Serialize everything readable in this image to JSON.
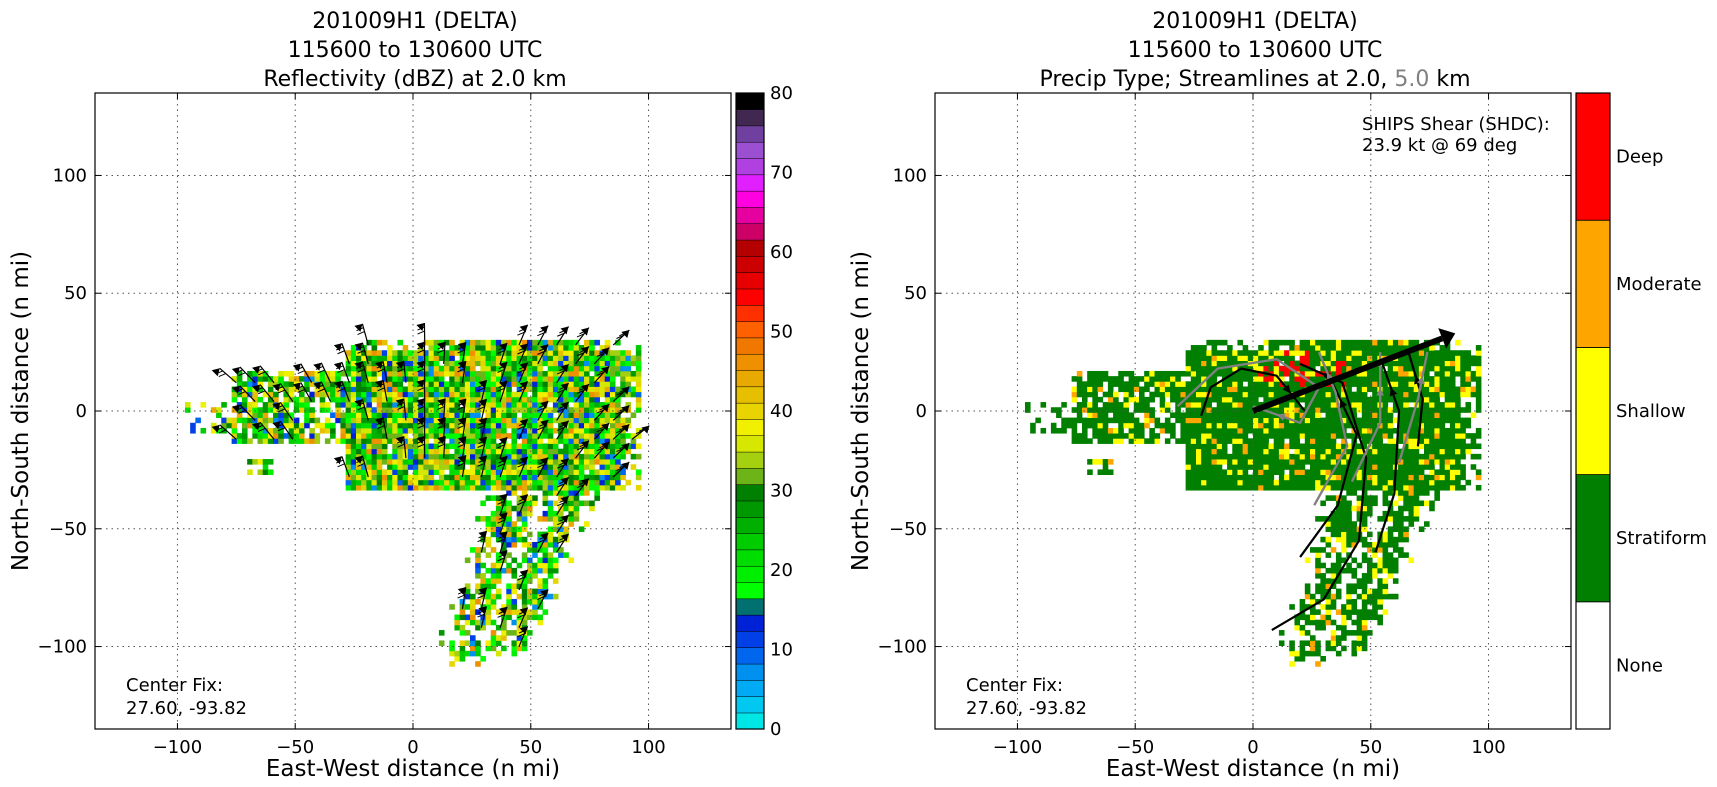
{
  "chart_data": [
    {
      "type": "heatmap",
      "title_lines": [
        "201009H1 (DELTA)",
        "115600 to 130600 UTC",
        "Reflectivity (dBZ) at 2.0 km"
      ],
      "xlabel": "East-West distance (n mi)",
      "ylabel": "North-South distance (n mi)",
      "xlim": [
        -135,
        135
      ],
      "ylim": [
        -135,
        135
      ],
      "xticks": [
        -100,
        -50,
        0,
        50,
        100
      ],
      "yticks": [
        -100,
        -50,
        0,
        50,
        100
      ],
      "xtick_labels": [
        "−100",
        "−50",
        "0",
        "50",
        "100"
      ],
      "ytick_labels": [
        "−100",
        "−50",
        "0",
        "50",
        "100"
      ],
      "grid": true,
      "annotation": [
        "Center Fix:",
        "27.60, -93.82"
      ],
      "colorbar": {
        "range": [
          0,
          80
        ],
        "ticks": [
          0,
          10,
          20,
          30,
          40,
          50,
          60,
          70,
          80
        ],
        "colors": [
          "#00e5e5",
          "#00c8f0",
          "#00aaf5",
          "#0090f0",
          "#0066ee",
          "#0040e6",
          "#0022d6",
          "#007070",
          "#00ff00",
          "#00ee00",
          "#00dd00",
          "#00cc00",
          "#00b000",
          "#009800",
          "#008000",
          "#6cb418",
          "#a4d010",
          "#d6e800",
          "#f0f000",
          "#e8d400",
          "#e6c000",
          "#e8aa00",
          "#ee9000",
          "#f07800",
          "#ff6000",
          "#ff3000",
          "#ff0000",
          "#e60000",
          "#cc0000",
          "#b40000",
          "#cc0066",
          "#e600a0",
          "#ff00e0",
          "#e020ff",
          "#b040e0",
          "#9a50d0",
          "#7040a0",
          "#402850",
          "#000000"
        ]
      },
      "center_fix": {
        "x": 0,
        "y": 0
      },
      "wind_barbs": true
    },
    {
      "type": "heatmap",
      "title_lines": [
        "201009H1 (DELTA)",
        "115600 to 130600 UTC"
      ],
      "title_line3_parts": [
        "Precip Type; Streamlines at 2.0,",
        "5.0",
        "km"
      ],
      "xlabel": "East-West distance (n mi)",
      "ylabel": "North-South distance (n mi)",
      "xlim": [
        -135,
        135
      ],
      "ylim": [
        -135,
        135
      ],
      "xticks": [
        -100,
        -50,
        0,
        50,
        100
      ],
      "yticks": [
        -100,
        -50,
        0,
        50,
        100
      ],
      "xtick_labels": [
        "−100",
        "−50",
        "0",
        "50",
        "100"
      ],
      "ytick_labels": [
        "−100",
        "−50",
        "0",
        "50",
        "100"
      ],
      "grid": true,
      "annotation": [
        "Center Fix:",
        "27.60, -93.82"
      ],
      "shear_text": [
        "SHIPS Shear (SHDC):",
        "23.9 kt @ 69 deg"
      ],
      "shear": {
        "speed_kt": 23.9,
        "direction_deg": 69
      },
      "colorbar": {
        "categories": [
          "None",
          "Stratiform",
          "Shallow",
          "Moderate",
          "Deep"
        ],
        "colors": [
          "#ffffff",
          "#007f00",
          "#ffff00",
          "#ffa500",
          "#ff0000"
        ]
      },
      "streamline_colors": {
        "low": "#000000",
        "high": "#808080"
      },
      "title_highlight_color": "#808080"
    }
  ]
}
